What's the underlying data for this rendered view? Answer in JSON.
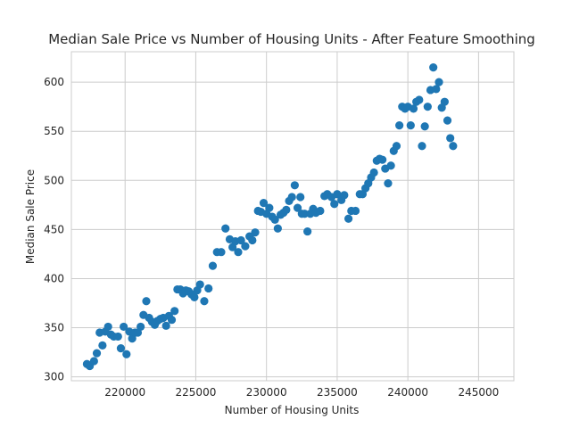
{
  "chart_data": {
    "type": "scatter",
    "title": "Median Sale Price vs Number of Housing Units - After Feature Smoothing",
    "xlabel": "Number of Housing Units",
    "ylabel": "Median Sale Price",
    "xlim": [
      216200,
      247500
    ],
    "ylim": [
      296,
      631
    ],
    "xticks": [
      220000,
      225000,
      230000,
      235000,
      240000,
      245000
    ],
    "yticks": [
      300,
      350,
      400,
      450,
      500,
      550,
      600
    ],
    "grid": true,
    "marker_color": "#1f77b4",
    "series": [
      {
        "points": [
          [
            217300,
            313
          ],
          [
            217500,
            311
          ],
          [
            217800,
            316
          ],
          [
            218000,
            324
          ],
          [
            218200,
            345
          ],
          [
            218400,
            332
          ],
          [
            218600,
            346
          ],
          [
            218800,
            351
          ],
          [
            219000,
            343
          ],
          [
            219200,
            341
          ],
          [
            219500,
            341
          ],
          [
            219700,
            329
          ],
          [
            219900,
            351
          ],
          [
            220100,
            323
          ],
          [
            220300,
            346
          ],
          [
            220500,
            339
          ],
          [
            220700,
            345
          ],
          [
            220900,
            345
          ],
          [
            221100,
            351
          ],
          [
            221300,
            363
          ],
          [
            221500,
            377
          ],
          [
            221700,
            360
          ],
          [
            221900,
            356
          ],
          [
            222100,
            353
          ],
          [
            222300,
            357
          ],
          [
            222500,
            359
          ],
          [
            222700,
            360
          ],
          [
            222900,
            352
          ],
          [
            223100,
            362
          ],
          [
            223300,
            358
          ],
          [
            223500,
            367
          ],
          [
            223700,
            389
          ],
          [
            223900,
            389
          ],
          [
            224100,
            385
          ],
          [
            224300,
            388
          ],
          [
            224500,
            387
          ],
          [
            224700,
            384
          ],
          [
            224900,
            381
          ],
          [
            225100,
            388
          ],
          [
            225300,
            394
          ],
          [
            225600,
            377
          ],
          [
            225900,
            390
          ],
          [
            226200,
            413
          ],
          [
            226500,
            427
          ],
          [
            226800,
            427
          ],
          [
            227100,
            451
          ],
          [
            227400,
            440
          ],
          [
            227600,
            432
          ],
          [
            227800,
            438
          ],
          [
            228000,
            427
          ],
          [
            228200,
            439
          ],
          [
            228500,
            433
          ],
          [
            228800,
            443
          ],
          [
            229000,
            439
          ],
          [
            229200,
            447
          ],
          [
            229400,
            469
          ],
          [
            229600,
            468
          ],
          [
            229800,
            477
          ],
          [
            230000,
            466
          ],
          [
            230200,
            472
          ],
          [
            230400,
            463
          ],
          [
            230600,
            460
          ],
          [
            230800,
            451
          ],
          [
            231000,
            465
          ],
          [
            231200,
            467
          ],
          [
            231400,
            470
          ],
          [
            231600,
            479
          ],
          [
            231800,
            483
          ],
          [
            232000,
            495
          ],
          [
            232200,
            472
          ],
          [
            232400,
            483
          ],
          [
            232500,
            466
          ],
          [
            232700,
            466
          ],
          [
            232900,
            448
          ],
          [
            233100,
            466
          ],
          [
            233300,
            471
          ],
          [
            233500,
            467
          ],
          [
            233800,
            469
          ],
          [
            234100,
            484
          ],
          [
            234300,
            486
          ],
          [
            234600,
            483
          ],
          [
            234800,
            476
          ],
          [
            235000,
            486
          ],
          [
            235300,
            480
          ],
          [
            235500,
            485
          ],
          [
            235800,
            461
          ],
          [
            236000,
            469
          ],
          [
            236300,
            469
          ],
          [
            236600,
            486
          ],
          [
            236800,
            486
          ],
          [
            237000,
            492
          ],
          [
            237200,
            497
          ],
          [
            237400,
            503
          ],
          [
            237600,
            508
          ],
          [
            237800,
            520
          ],
          [
            238000,
            522
          ],
          [
            238200,
            521
          ],
          [
            238400,
            512
          ],
          [
            238600,
            497
          ],
          [
            238800,
            515
          ],
          [
            239000,
            530
          ],
          [
            239200,
            535
          ],
          [
            239400,
            556
          ],
          [
            239600,
            575
          ],
          [
            239800,
            573
          ],
          [
            240000,
            575
          ],
          [
            240200,
            556
          ],
          [
            240400,
            573
          ],
          [
            240600,
            580
          ],
          [
            240800,
            582
          ],
          [
            241000,
            535
          ],
          [
            241200,
            555
          ],
          [
            241400,
            575
          ],
          [
            241600,
            592
          ],
          [
            241800,
            615
          ],
          [
            242000,
            593
          ],
          [
            242200,
            600
          ],
          [
            242400,
            574
          ],
          [
            242600,
            580
          ],
          [
            242800,
            561
          ],
          [
            243000,
            543
          ],
          [
            243200,
            535
          ]
        ]
      }
    ]
  }
}
